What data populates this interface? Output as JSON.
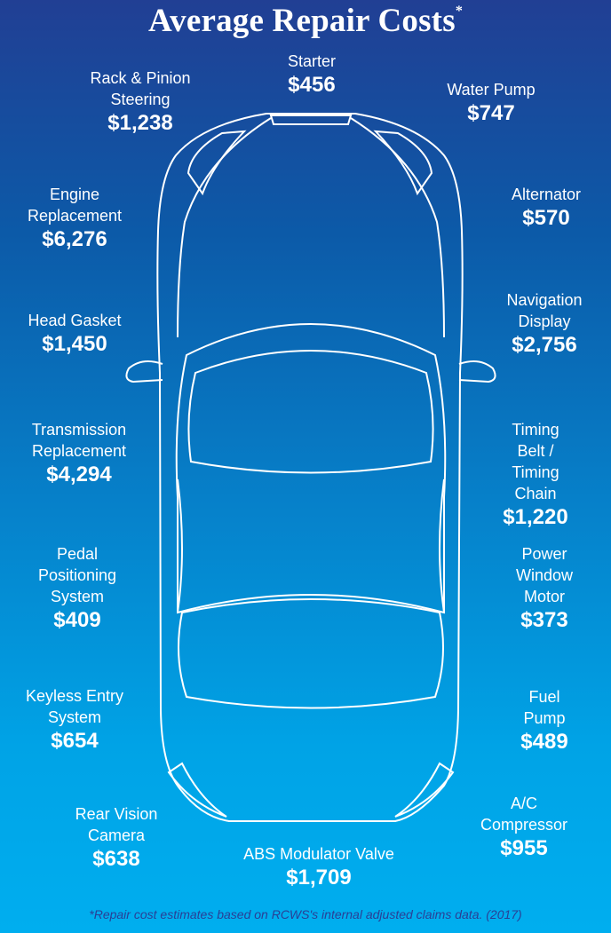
{
  "title": "Average Repair Costs",
  "title_mark": "*",
  "footnote": "*Repair cost estimates based on RCWS's internal adjusted claims data. (2017)",
  "colors": {
    "background_top": "#213f94",
    "background_bottom": "#00aeef",
    "text": "#ffffff",
    "footnote": "#2a3f95"
  },
  "items": [
    {
      "name": "Rack & Pinion\nSteering",
      "cost": "$1,238"
    },
    {
      "name": "Starter",
      "cost": "$456"
    },
    {
      "name": "Water Pump",
      "cost": "$747"
    },
    {
      "name": "Engine\nReplacement",
      "cost": "$6,276"
    },
    {
      "name": "Alternator",
      "cost": "$570"
    },
    {
      "name": "Head Gasket",
      "cost": "$1,450"
    },
    {
      "name": "Navigation\nDisplay",
      "cost": "$2,756"
    },
    {
      "name": "Transmission\nReplacement",
      "cost": "$4,294"
    },
    {
      "name": "Timing Belt /\nTiming Chain",
      "cost": "$1,220"
    },
    {
      "name": "Pedal\nPositioning\nSystem",
      "cost": "$409"
    },
    {
      "name": "Power\nWindow\nMotor",
      "cost": "$373"
    },
    {
      "name": "Keyless Entry\nSystem",
      "cost": "$654"
    },
    {
      "name": "Fuel Pump",
      "cost": "$489"
    },
    {
      "name": "Rear Vision\nCamera",
      "cost": "$638"
    },
    {
      "name": "A/C\nCompressor",
      "cost": "$955"
    },
    {
      "name": "ABS Modulator Valve",
      "cost": "$1,709"
    }
  ]
}
